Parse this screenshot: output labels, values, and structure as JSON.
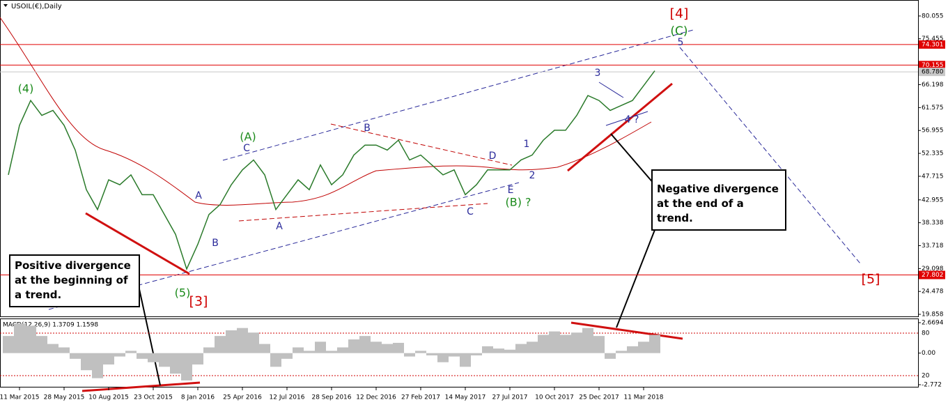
{
  "chart_data": [
    {
      "type": "line",
      "title": "USOIL(€),Daily",
      "color": "#2a7a2a",
      "categories": [
        null,
        "11 Mar 2015",
        null,
        null,
        null,
        "28 May 2015",
        null,
        null,
        null,
        "10 Aug 2015",
        null,
        null,
        null,
        "23 Oct 2015",
        null,
        null,
        null,
        "8 Jan 2016",
        null,
        null,
        null,
        "25 Apr 2016",
        null,
        null,
        null,
        "12 Jul 2016",
        null,
        null,
        null,
        "28 Sep 2016",
        null,
        null,
        null,
        "12 Dec 2016",
        null,
        null,
        null,
        "27 Feb 2017",
        null,
        null,
        null,
        "14 May 2017",
        null,
        null,
        null,
        "27 Jul 2017",
        null,
        null,
        null,
        "10 Oct 2017",
        null,
        null,
        null,
        "25 Dec 2017",
        null,
        null,
        null,
        "11 Mar 2018",
        null
      ],
      "values": [
        48,
        58,
        63,
        60,
        61,
        58,
        53,
        45,
        41,
        47,
        46,
        48,
        44,
        44,
        40,
        36,
        29,
        34,
        40,
        42,
        46,
        49,
        51,
        48,
        41,
        44,
        47,
        45,
        50,
        46,
        48,
        52,
        54,
        54,
        53,
        55,
        51,
        52,
        50,
        48,
        49,
        44,
        46,
        49,
        49,
        49,
        51,
        52,
        55,
        57,
        57,
        60,
        64,
        63,
        61,
        62,
        63,
        66,
        69
      ],
      "ylim": [
        19.3,
        83.14
      ],
      "yticks": [
        80.055,
        75.455,
        66.198,
        61.575,
        56.955,
        52.335,
        47.715,
        42.955,
        38.338,
        33.718,
        29.098,
        24.478,
        19.858
      ],
      "levels": [
        {
          "value": 74.301,
          "color": "#e00000"
        },
        {
          "value": 70.155,
          "color": "#e00000"
        },
        {
          "value": {
            "value": 68.78,
            "label": "68.780"
          },
          "color": "#c8c8c8"
        },
        {
          "value": 27.802,
          "color": "#e00000"
        }
      ],
      "annotations": [
        "(4)",
        "(A)",
        "C",
        "A",
        "B",
        "A",
        "B",
        "C",
        "D",
        "E",
        "(B) ?",
        "1",
        "2",
        "3",
        "4 ?",
        "5",
        "(C)",
        "[4]",
        "[5]",
        "(5)",
        "[3]"
      ],
      "notes": [
        "Positive divergence at the beginning of a trend.",
        "Negative divergence at the end of a trend."
      ]
    },
    {
      "type": "bar",
      "title": "MACD(12,26,9) 1.3709 1.1598",
      "color": "#c0c0c0",
      "values": [
        1.5,
        2.6,
        2.4,
        1.5,
        0.8,
        0.5,
        -0.5,
        -1.5,
        -2.2,
        -1.0,
        -0.3,
        0.2,
        -0.5,
        -0.8,
        -1.2,
        -1.8,
        -2.4,
        -1.0,
        0.5,
        1.5,
        2.0,
        2.2,
        1.8,
        0.8,
        -1.2,
        -0.5,
        0.5,
        0.2,
        1.0,
        0.2,
        0.5,
        1.2,
        1.5,
        1.0,
        0.8,
        0.9,
        -0.3,
        0.2,
        -0.2,
        -0.8,
        -0.3,
        -1.2,
        -0.2,
        0.6,
        0.4,
        0.3,
        0.8,
        1.0,
        1.6,
        1.9,
        1.6,
        1.8,
        2.2,
        1.5,
        -0.5,
        0.2,
        0.6,
        1.0,
        1.6
      ],
      "ylim": [
        -2.955,
        2.975
      ],
      "yticks": [
        2.6694,
        {
          "value": 0,
          "label": "0.00"
        },
        -2.772
      ],
      "y2lim": [
        4.3,
        99.7
      ],
      "y2ticks": [
        80,
        20
      ]
    }
  ]
}
